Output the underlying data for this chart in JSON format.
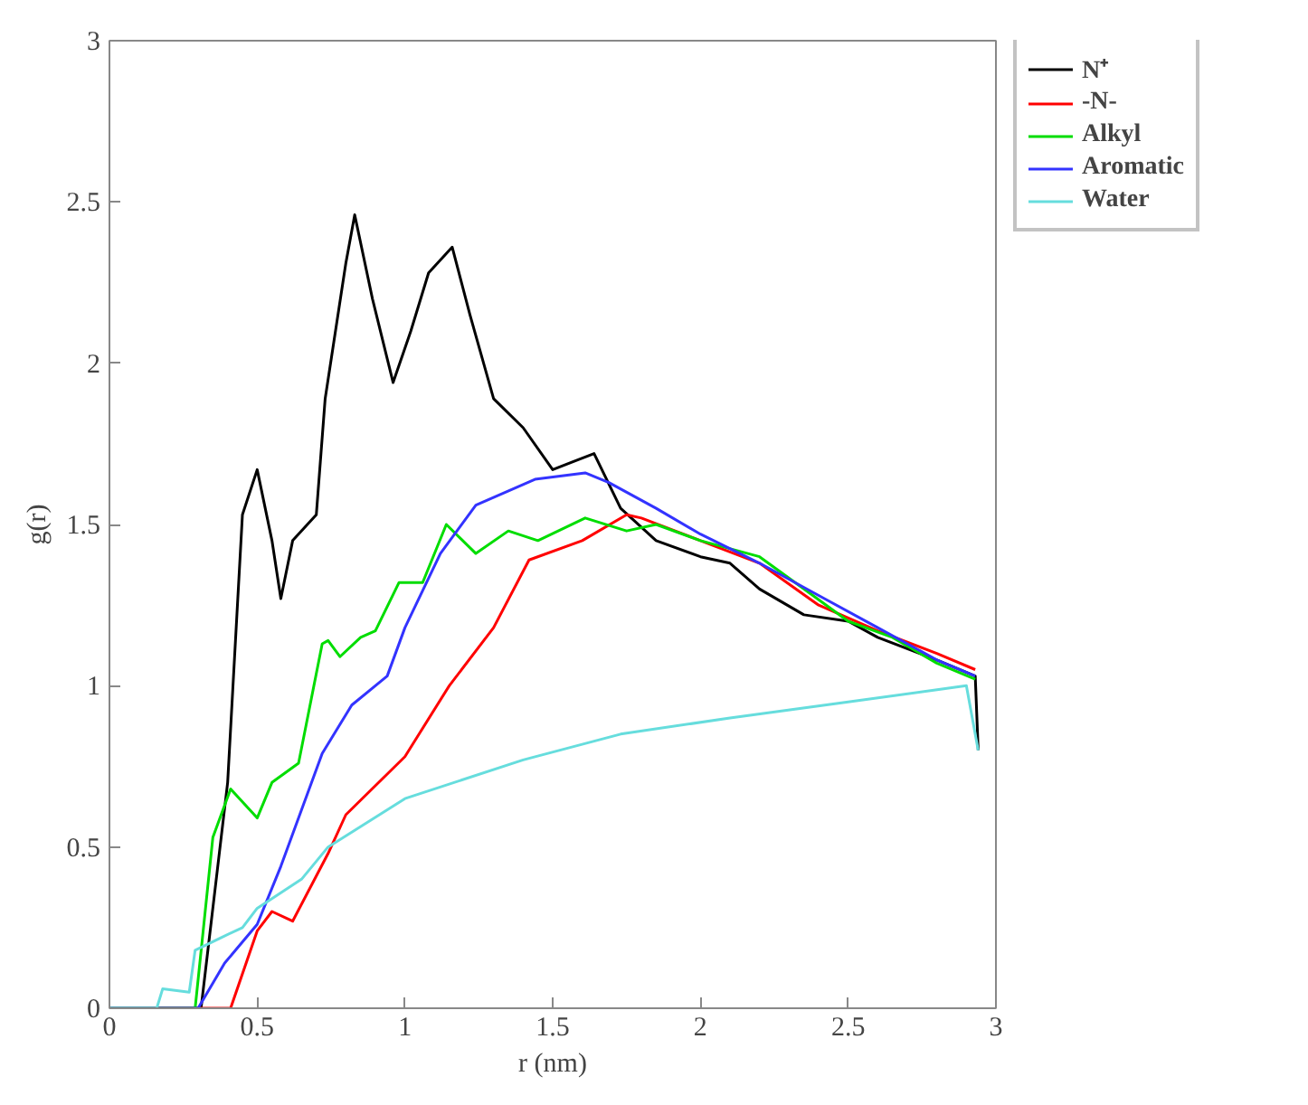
{
  "chart_data": {
    "type": "line",
    "xlabel": "r (nm)",
    "ylabel": "g(r)",
    "xlim": [
      0,
      3
    ],
    "ylim": [
      0,
      3
    ],
    "xticks": [
      0,
      0.5,
      1,
      1.5,
      2,
      2.5,
      3
    ],
    "yticks": [
      0,
      0.5,
      1,
      1.5,
      2,
      2.5,
      3
    ],
    "grid": false,
    "legend": "right",
    "line_style": "solid",
    "series": [
      {
        "name": "N⁺",
        "color": "#000000",
        "x": [
          0,
          0.31,
          0.4,
          0.45,
          0.5,
          0.55,
          0.58,
          0.62,
          0.7,
          0.73,
          0.8,
          0.83,
          0.89,
          0.96,
          1.02,
          1.08,
          1.16,
          1.22,
          1.3,
          1.4,
          1.5,
          1.64,
          1.73,
          1.85,
          2.0,
          2.1,
          2.2,
          2.35,
          2.5,
          2.6,
          2.8,
          2.93,
          2.94
        ],
        "values": [
          0,
          0,
          0.7,
          1.53,
          1.67,
          1.45,
          1.27,
          1.45,
          1.53,
          1.89,
          2.31,
          2.46,
          2.2,
          1.94,
          2.1,
          2.28,
          2.36,
          2.15,
          1.89,
          1.8,
          1.67,
          1.72,
          1.55,
          1.45,
          1.4,
          1.38,
          1.3,
          1.22,
          1.2,
          1.15,
          1.08,
          1.03,
          0.8
        ]
      },
      {
        "name": "-N-",
        "color": "#ff0000",
        "x": [
          0,
          0.41,
          0.5,
          0.55,
          0.62,
          0.74,
          0.8,
          1.0,
          1.15,
          1.3,
          1.42,
          1.6,
          1.75,
          1.8,
          2.0,
          2.2,
          2.4,
          2.6,
          2.8,
          2.93
        ],
        "values": [
          0,
          0,
          0.24,
          0.3,
          0.27,
          0.48,
          0.6,
          0.78,
          1.0,
          1.18,
          1.39,
          1.45,
          1.53,
          1.52,
          1.45,
          1.38,
          1.25,
          1.17,
          1.1,
          1.05
        ]
      },
      {
        "name": "Alkyl",
        "color": "#00dd00",
        "x": [
          0,
          0.29,
          0.35,
          0.41,
          0.5,
          0.55,
          0.64,
          0.72,
          0.74,
          0.78,
          0.85,
          0.9,
          0.98,
          1.06,
          1.14,
          1.24,
          1.35,
          1.45,
          1.61,
          1.75,
          1.85,
          2.0,
          2.2,
          2.35,
          2.5,
          2.65,
          2.8,
          2.93
        ],
        "values": [
          0,
          0,
          0.53,
          0.68,
          0.59,
          0.7,
          0.76,
          1.13,
          1.14,
          1.09,
          1.15,
          1.17,
          1.32,
          1.32,
          1.5,
          1.41,
          1.48,
          1.45,
          1.52,
          1.48,
          1.5,
          1.45,
          1.4,
          1.3,
          1.2,
          1.15,
          1.07,
          1.02
        ]
      },
      {
        "name": "Aromatic",
        "color": "#3333ff",
        "x": [
          0,
          0.3,
          0.39,
          0.5,
          0.58,
          0.72,
          0.82,
          0.94,
          1.0,
          1.12,
          1.24,
          1.44,
          1.61,
          1.69,
          1.85,
          2.0,
          2.2,
          2.4,
          2.6,
          2.8,
          2.93
        ],
        "values": [
          0,
          0,
          0.14,
          0.26,
          0.44,
          0.79,
          0.94,
          1.03,
          1.18,
          1.41,
          1.56,
          1.64,
          1.66,
          1.63,
          1.55,
          1.47,
          1.38,
          1.28,
          1.18,
          1.08,
          1.03
        ]
      },
      {
        "name": "Water",
        "color": "#66dddd",
        "x": [
          0,
          0.16,
          0.18,
          0.27,
          0.29,
          0.38,
          0.45,
          0.5,
          0.65,
          0.74,
          1.0,
          1.4,
          1.73,
          2.1,
          2.5,
          2.9,
          2.94
        ],
        "values": [
          0,
          0,
          0.06,
          0.05,
          0.18,
          0.22,
          0.25,
          0.31,
          0.4,
          0.5,
          0.65,
          0.77,
          0.85,
          0.9,
          0.95,
          1.0,
          0.8
        ]
      }
    ]
  }
}
